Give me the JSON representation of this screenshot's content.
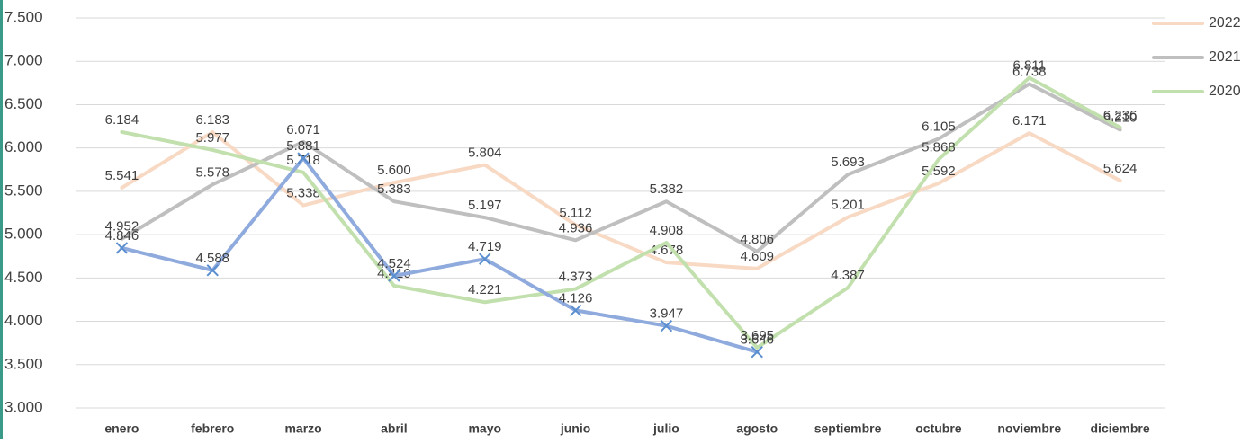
{
  "chart_data": {
    "type": "line",
    "categories": [
      "enero",
      "febrero",
      "marzo",
      "abril",
      "mayo",
      "junio",
      "julio",
      "agosto",
      "septiembre",
      "octubre",
      "noviembre",
      "diciembre"
    ],
    "series": [
      {
        "name": "2022",
        "color": "#f8d9c4",
        "values": [
          5541,
          6183,
          5338,
          5600,
          5804,
          5112,
          4678,
          4609,
          5201,
          5592,
          6171,
          5624
        ],
        "value_labels": [
          "5.541",
          "6.183",
          "5.338",
          "5.600",
          "5.804",
          "5.112",
          "4.678",
          "4.609",
          "5.201",
          "5.592",
          "6.171",
          "5.624"
        ]
      },
      {
        "name": "2021",
        "color": "#bfbfbf",
        "values": [
          4952,
          5578,
          6071,
          5383,
          5197,
          4936,
          5382,
          4806,
          5693,
          6105,
          6738,
          6210
        ],
        "value_labels": [
          "4.952",
          "5.578",
          "6.071",
          "5.383",
          "5.197",
          "4.936",
          "5.382",
          "4.806",
          "5.693",
          "6.105",
          "6.738",
          "6.210"
        ]
      },
      {
        "name": "2020",
        "color": "#c2e0ad",
        "values": [
          6184,
          5977,
          5718,
          4410,
          4221,
          4373,
          4908,
          3695,
          4387,
          5868,
          6811,
          6236
        ],
        "value_labels": [
          "6.184",
          "5.977",
          "5.718",
          "4.410",
          "4.221",
          "4.373",
          "4.908",
          "3.695",
          "4.387",
          "5.868",
          "6.811",
          "6.236"
        ]
      },
      {
        "color": "#8faadc",
        "marker": "x",
        "values": [
          4846,
          4588,
          5881,
          4524,
          4719,
          4126,
          3947,
          3646,
          null,
          null,
          null,
          null
        ],
        "value_labels": [
          "4.846",
          "4.588",
          "5.881",
          "4.524",
          "4.719",
          "4.126",
          "3.947",
          "3.646",
          null,
          null,
          null,
          null
        ]
      }
    ],
    "ylim": [
      3000,
      7500
    ],
    "yticks": [
      {
        "value": 3000,
        "label": "3.000"
      },
      {
        "value": 3500,
        "label": "3.500"
      },
      {
        "value": 4000,
        "label": "4.000"
      },
      {
        "value": 4500,
        "label": "4.500"
      },
      {
        "value": 5000,
        "label": "5.000"
      },
      {
        "value": 5500,
        "label": "5.500"
      },
      {
        "value": 6000,
        "label": "6.000"
      },
      {
        "value": 6500,
        "label": "6.500"
      },
      {
        "value": 7000,
        "label": "7.000"
      },
      {
        "value": 7500,
        "label": "7.500"
      }
    ],
    "grid": true,
    "legend": "right"
  }
}
